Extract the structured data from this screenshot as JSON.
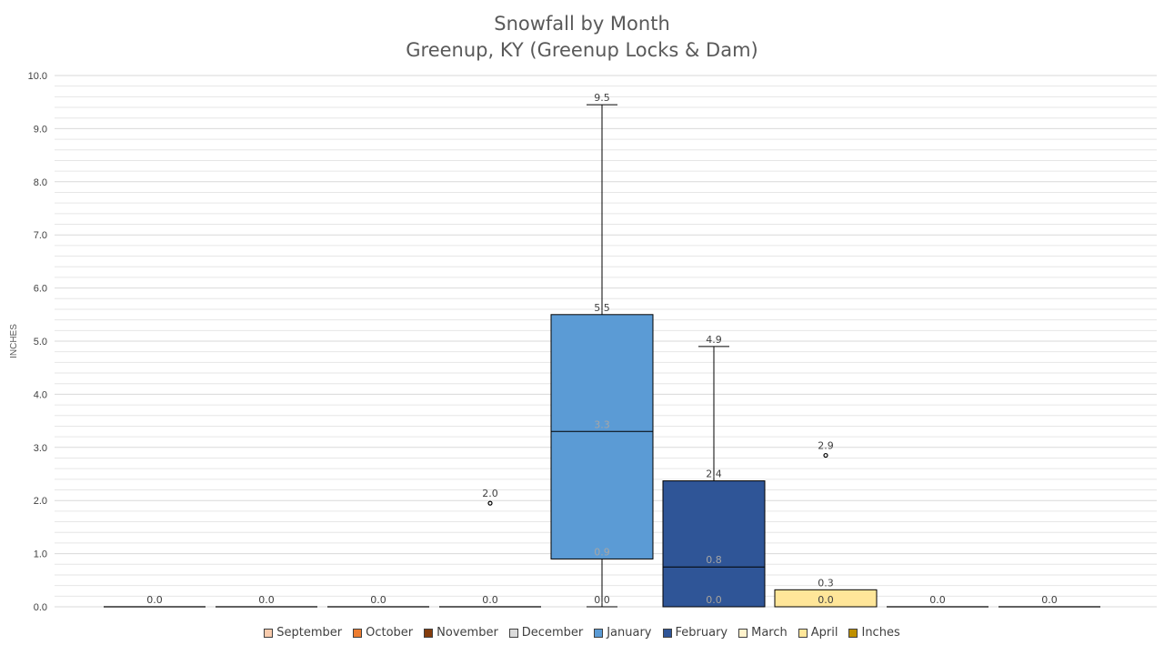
{
  "chart_data": {
    "type": "box",
    "title": "Snowfall by Month",
    "subtitle": "Greenup, KY (Greenup Locks & Dam)",
    "ylabel": "INCHES",
    "ylim": [
      0,
      10
    ],
    "yticks": [
      "0.0",
      "1.0",
      "2.0",
      "3.0",
      "4.0",
      "5.0",
      "6.0",
      "7.0",
      "8.0",
      "9.0",
      "10.0"
    ],
    "minor_grid": true,
    "legend_position": "bottom",
    "legend": [
      {
        "label": "September",
        "color": "#f8cbad"
      },
      {
        "label": "October",
        "color": "#ed7d31"
      },
      {
        "label": "November",
        "color": "#843c0c"
      },
      {
        "label": "December",
        "color": "#dbdbdb"
      },
      {
        "label": "January",
        "color": "#5b9bd5"
      },
      {
        "label": "February",
        "color": "#2f5597"
      },
      {
        "label": "March",
        "color": "#fff2cc"
      },
      {
        "label": "April",
        "color": "#ffe699"
      },
      {
        "label": "Inches",
        "color": "#bf9000"
      }
    ],
    "boxes": [
      {
        "color": "#f8cbad",
        "min": 0,
        "q1": 0,
        "median": 0,
        "q3": 0,
        "max": 0,
        "labels": [
          "0.0"
        ],
        "outliers": []
      },
      {
        "color": "#ed7d31",
        "min": 0,
        "q1": 0,
        "median": 0,
        "q3": 0,
        "max": 0,
        "labels": [
          "0.0"
        ],
        "outliers": []
      },
      {
        "color": "#843c0c",
        "min": 0,
        "q1": 0,
        "median": 0,
        "q3": 0,
        "max": 0,
        "labels": [
          "0.0"
        ],
        "outliers": []
      },
      {
        "color": "#dbdbdb",
        "min": 0,
        "q1": 0,
        "median": 0,
        "q3": 0,
        "max": 0,
        "labels": [
          "0.0"
        ],
        "outliers": [
          {
            "value": 1.95,
            "label": "2.0"
          }
        ]
      },
      {
        "color": "#5b9bd5",
        "min": 0,
        "q1": 0.9,
        "median": 3.3,
        "q3": 5.5,
        "max": 9.45,
        "labels": [
          "0.0",
          "0.9",
          "3.3",
          "5.5",
          "9.5"
        ],
        "outliers": []
      },
      {
        "color": "#2f5597",
        "min": 0,
        "q1": 0,
        "median": 0.75,
        "q3": 2.37,
        "max": 4.9,
        "labels": [
          "0.0",
          "0.0",
          "0.8",
          "2.4",
          "4.9"
        ],
        "outliers": []
      },
      {
        "color": "#ffe699",
        "min": 0,
        "q1": 0,
        "median": 0,
        "q3": 0.32,
        "max": 0.32,
        "labels": [
          "0.0",
          "0.3"
        ],
        "outliers": [
          {
            "value": 2.85,
            "label": "2.9"
          }
        ]
      },
      {
        "color": "#ffe699",
        "min": 0,
        "q1": 0,
        "median": 0,
        "q3": 0,
        "max": 0,
        "labels": [
          "0.0"
        ],
        "outliers": []
      },
      {
        "color": "#bf9000",
        "min": 0,
        "q1": 0,
        "median": 0,
        "q3": 0,
        "max": 0,
        "labels": [
          "0.0"
        ],
        "outliers": []
      }
    ]
  }
}
